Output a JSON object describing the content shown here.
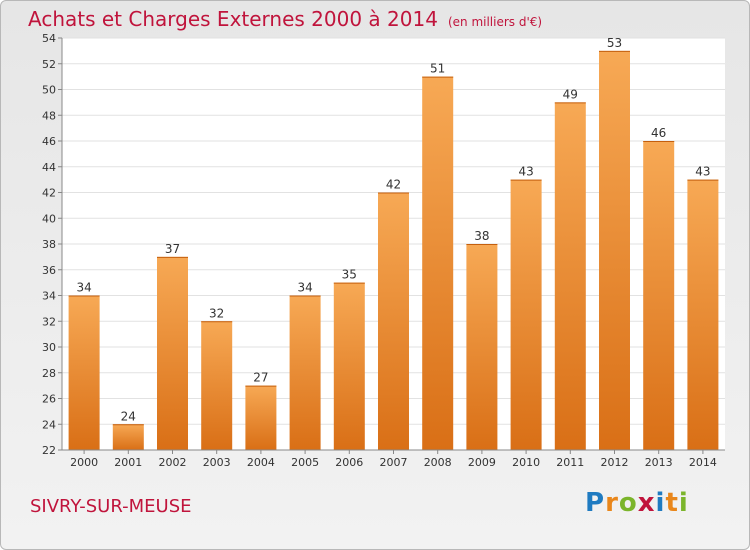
{
  "header": {
    "title": "Achats et Charges Externes 2000 à 2014",
    "subtitle": "(en milliers d'€)"
  },
  "commune": "SIVRY-SUR-MEUSE",
  "logo": {
    "text": "Proxiti",
    "colors": [
      "#1f7bc1",
      "#e9871b",
      "#7bb52b",
      "#c0143c",
      "#1f7bc1",
      "#e9871b"
    ]
  },
  "colors": {
    "bar": "#f08a30",
    "title": "#c0143c"
  },
  "chart_data": {
    "type": "bar",
    "categories": [
      "2000",
      "2001",
      "2002",
      "2003",
      "2004",
      "2005",
      "2006",
      "2007",
      "2008",
      "2009",
      "2010",
      "2011",
      "2012",
      "2013",
      "2014"
    ],
    "values": [
      34,
      24,
      37,
      32,
      27,
      34,
      35,
      42,
      51,
      38,
      43,
      49,
      53,
      46,
      43
    ],
    "title": "Achats et Charges Externes 2000 à 2014",
    "subtitle": "(en milliers d'€)",
    "xlabel": "",
    "ylabel": "",
    "ylim": [
      22,
      54
    ],
    "yticks": [
      22,
      24,
      26,
      28,
      30,
      32,
      34,
      36,
      38,
      40,
      42,
      44,
      46,
      48,
      50,
      52,
      54
    ],
    "grid": true,
    "data_labels": true
  }
}
